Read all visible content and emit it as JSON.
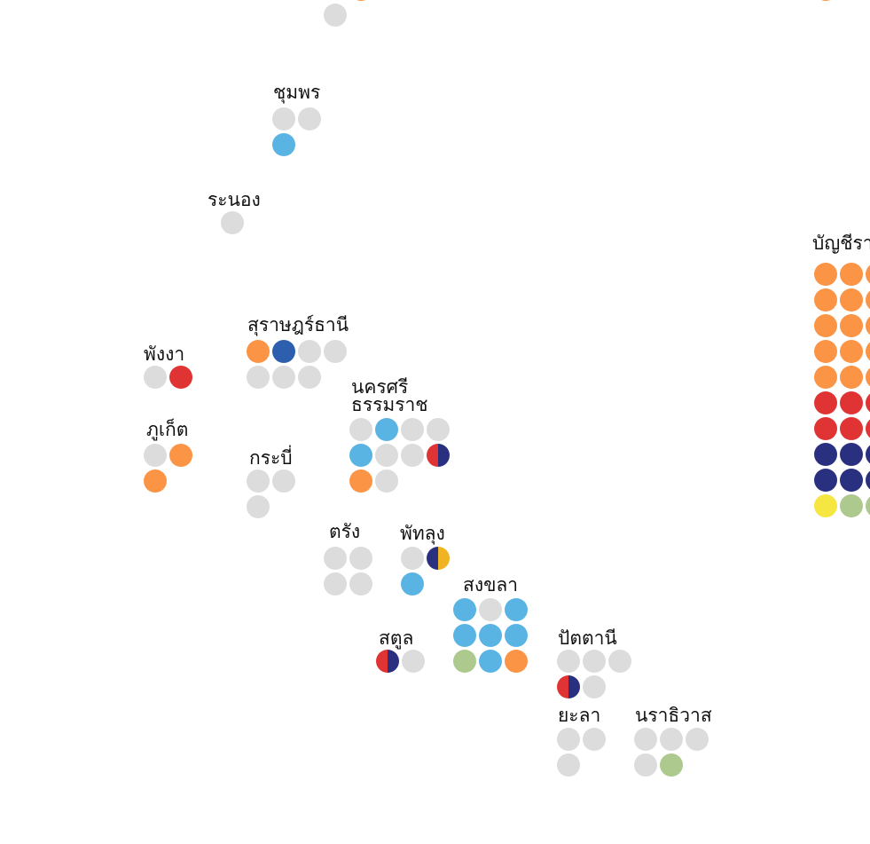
{
  "provinces": [
    {
      "seats": [
        "#dcdcdc"
      ]
    },
    {
      "seats": [
        "#fb9444"
      ]
    },
    {
      "seats": [
        "#fb9444"
      ]
    },
    {
      "name": "ชุมพร",
      "seats": [
        "#dcdcdc",
        "#dcdcdc",
        "#5ab4e3"
      ]
    },
    {
      "name": "ระนอง",
      "seats": [
        "#dcdcdc"
      ]
    },
    {
      "name": "สุราษฎร์ธานี",
      "seats": [
        "#fb9444",
        "#2d5fae",
        "#dcdcdc",
        "#dcdcdc",
        "#dcdcdc",
        "#dcdcdc",
        "#dcdcdc"
      ]
    },
    {
      "name": "พังงา",
      "seats": [
        "#dcdcdc",
        "#e03434"
      ]
    },
    {
      "name": "ภูเก็ต",
      "seats": [
        "#dcdcdc",
        "#fb9444",
        "#fb9444"
      ]
    },
    {
      "name": "กระบี่",
      "seats": [
        "#dcdcdc",
        "#dcdcdc",
        "#dcdcdc"
      ]
    },
    {
      "name_lines": [
        "นครศรี",
        "ธรรมราช"
      ],
      "seats": [
        "#dcdcdc",
        "#5ab4e3",
        "#dcdcdc",
        "#dcdcdc",
        "#5ab4e3",
        "#dcdcdc",
        "#dcdcdc",
        "#e03434|#2a3080",
        "#fb9444",
        "#dcdcdc"
      ]
    },
    {
      "name": "ตรัง",
      "seats": [
        "#dcdcdc",
        "#dcdcdc",
        "#dcdcdc",
        "#dcdcdc"
      ]
    },
    {
      "name": "พัทลุง",
      "seats": [
        "#dcdcdc",
        "#2a3080|#f0b323",
        "#5ab4e3"
      ]
    },
    {
      "name": "สงขลา",
      "seats": [
        "#5ab4e3",
        "#dcdcdc",
        "#5ab4e3",
        "#5ab4e3",
        "#5ab4e3",
        "#5ab4e3",
        "#adc98e",
        "#5ab4e3",
        "#fb9444"
      ]
    },
    {
      "name": "สตูล",
      "seats": [
        "#e03434|#2a3080",
        "#dcdcdc"
      ]
    },
    {
      "name": "ปัตตานี",
      "seats": [
        "#dcdcdc",
        "#dcdcdc",
        "#dcdcdc",
        "#e03434|#2a3080",
        "#dcdcdc"
      ]
    },
    {
      "name": "ยะลา",
      "seats": [
        "#dcdcdc",
        "#dcdcdc",
        "#dcdcdc"
      ]
    },
    {
      "name": "นราธิวาส",
      "seats": [
        "#dcdcdc",
        "#dcdcdc",
        "#dcdcdc",
        "#dcdcdc",
        "#adc98e"
      ]
    },
    {
      "name": "บัญชีรายชื่อ",
      "seats": [
        "#fb9444",
        "#fb9444",
        "#fb9444",
        "#fb9444",
        "#fb9444",
        "#fb9444",
        "#fb9444",
        "#fb9444",
        "#fb9444",
        "#fb9444",
        "#fb9444",
        "#fb9444",
        "#fb9444",
        "#fb9444",
        "#fb9444",
        "#e03434",
        "#e03434",
        "#e03434",
        "#e03434",
        "#e03434",
        "#e03434",
        "#2a3080",
        "#2a3080",
        "#2a3080",
        "#2a3080",
        "#2a3080",
        "#2a3080",
        "#f5e642",
        "#adc98e",
        "#adc98e"
      ]
    }
  ]
}
